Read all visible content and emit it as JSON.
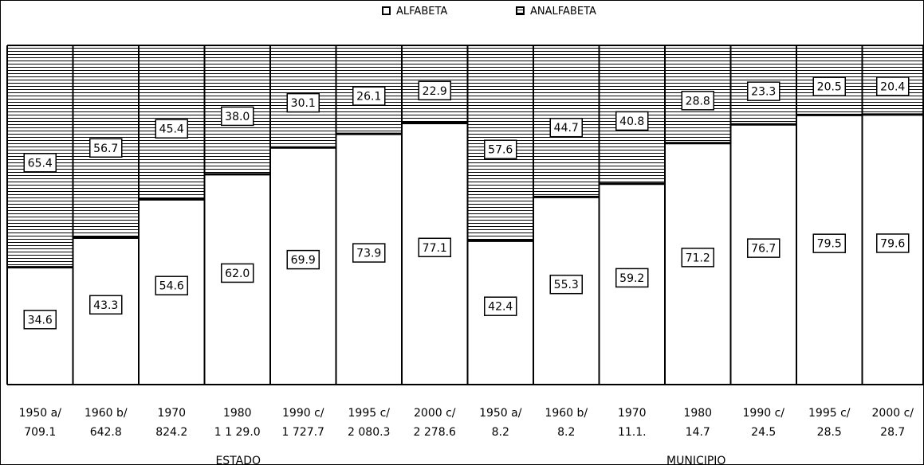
{
  "chart_data": {
    "type": "bar",
    "stacked": "percent",
    "legend_position": "top-center",
    "legend": [
      {
        "key": "alfabeta",
        "label": "ALFABETA",
        "fill": "plain"
      },
      {
        "key": "analfabeta",
        "label": "ANALFABETA",
        "fill": "horizontal-stripes"
      }
    ],
    "categories": [
      {
        "label": "1950 a/",
        "sub": "709.1"
      },
      {
        "label": "1960 b/",
        "sub": "642.8"
      },
      {
        "label": "1970",
        "sub": "824.2"
      },
      {
        "label": "1980",
        "sub": "1 1 29.0"
      },
      {
        "label": "1990 c/",
        "sub": "1 727.7"
      },
      {
        "label": "1995 c/",
        "sub": "2 080.3"
      },
      {
        "label": "2000 c/",
        "sub": "2 278.6"
      },
      {
        "label": "1950 a/",
        "sub": "8.2"
      },
      {
        "label": "1960 b/",
        "sub": "8.2"
      },
      {
        "label": "1970",
        "sub": "11.1."
      },
      {
        "label": "1980",
        "sub": "14.7"
      },
      {
        "label": "1990 c/",
        "sub": "24.5"
      },
      {
        "label": "1995 c/",
        "sub": "28.5"
      },
      {
        "label": "2000 c/",
        "sub": "28.7"
      }
    ],
    "series": [
      {
        "name": "ALFABETA",
        "values": [
          34.6,
          43.3,
          54.6,
          62.0,
          69.9,
          73.9,
          77.1,
          42.4,
          55.3,
          59.2,
          71.2,
          76.7,
          79.5,
          79.6
        ]
      },
      {
        "name": "ANALFABETA",
        "values": [
          65.4,
          56.7,
          45.4,
          38.0,
          30.1,
          26.1,
          22.9,
          57.6,
          44.7,
          40.8,
          28.8,
          23.3,
          20.5,
          20.4
        ]
      }
    ],
    "groups": [
      {
        "label": "ESTADO",
        "start": 0,
        "end": 6
      },
      {
        "label": "MUNICIPIO",
        "start": 7,
        "end": 13
      }
    ],
    "ylim": [
      0,
      100
    ]
  }
}
